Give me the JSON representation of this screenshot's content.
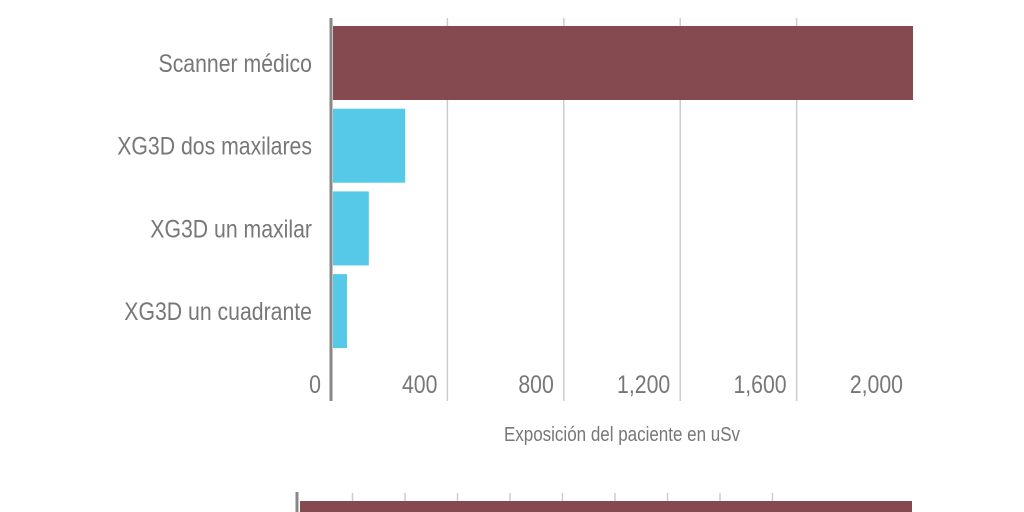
{
  "chart_data": {
    "type": "bar",
    "orientation": "horizontal",
    "categories": [
      "Scanner médico",
      "XG3D dos maxilares",
      "XG3D un maxilar",
      "XG3D un cuadrante"
    ],
    "values": [
      2000,
      255,
      130,
      55
    ],
    "xlabel": "Exposición del paciente en uSv",
    "ylabel": "",
    "xlim": [
      0,
      2000
    ],
    "xticks": [
      "0",
      "400",
      "800",
      "1,200",
      "1,600",
      "2,000"
    ],
    "tick_values": [
      0,
      400,
      800,
      1200,
      1600,
      2000
    ],
    "grid": true,
    "colors": [
      "#854a50",
      "#56c9e8",
      "#56c9e8",
      "#56c9e8"
    ]
  },
  "colors": {
    "axis": "#888888",
    "grid": "#cccccc",
    "text": "#777777"
  }
}
